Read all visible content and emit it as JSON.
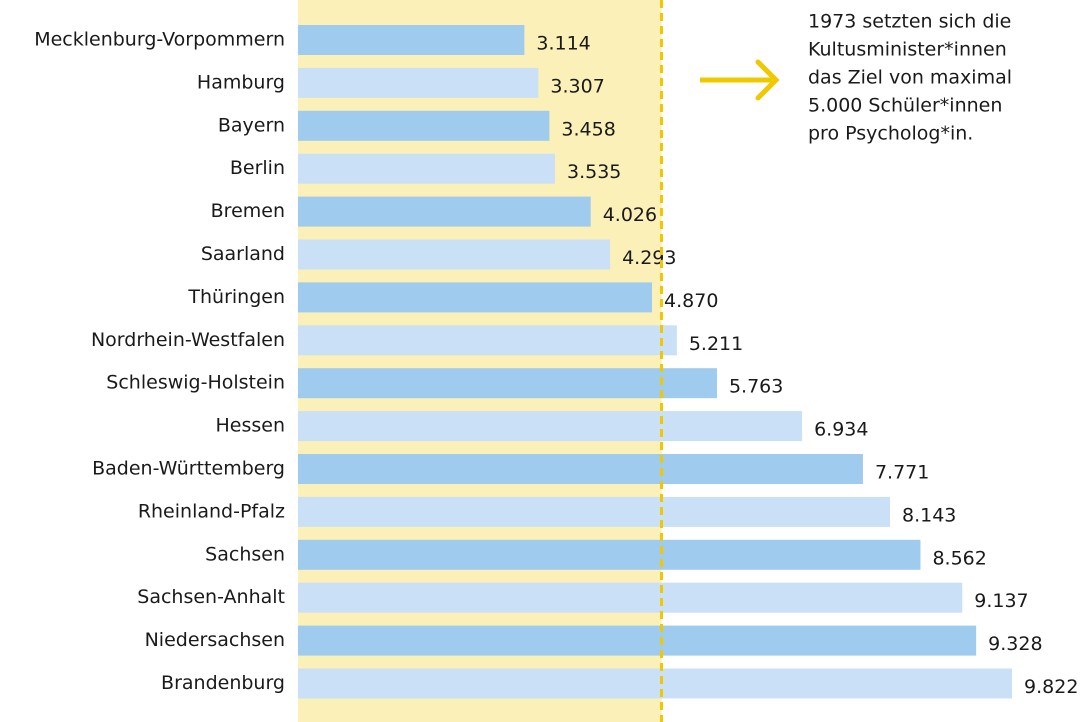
{
  "chart_data": {
    "type": "bar",
    "orientation": "horizontal",
    "categories": [
      "Mecklenburg-Vorpommern",
      "Hamburg",
      "Bayern",
      "Berlin",
      "Bremen",
      "Saarland",
      "Thüringen",
      "Nordrhein-Westfalen",
      "Schleswig-Holstein",
      "Hessen",
      "Baden-Württemberg",
      "Rheinland-Pfalz",
      "Sachsen",
      "Sachsen-Anhalt",
      "Niedersachsen",
      "Brandenburg"
    ],
    "values": [
      3114,
      3307,
      3458,
      3535,
      4026,
      4293,
      4870,
      5211,
      5763,
      6934,
      7771,
      8143,
      8562,
      9137,
      9328,
      9822
    ],
    "value_labels": [
      "3.114",
      "3.307",
      "3.458",
      "3.535",
      "4.026",
      "4.293",
      "4.870",
      "5.211",
      "5.763",
      "6.934",
      "7.771",
      "8.143",
      "8.562",
      "9.137",
      "9.328",
      "9.822"
    ],
    "colors": [
      "#9fcbee",
      "#c9e0f7"
    ],
    "threshold": 5000,
    "threshold_color": "#f0c800",
    "band_color": "#fbf0b8",
    "annotation": [
      "1973 setzten sich die",
      "Kultusminister*innen",
      "das Ziel von maximal",
      "5.000 Schüler*innen",
      "pro Psycholog*in."
    ]
  }
}
